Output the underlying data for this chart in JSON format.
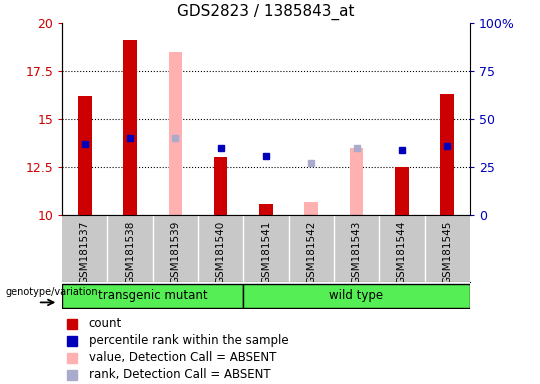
{
  "title": "GDS2823 / 1385843_at",
  "samples": [
    "GSM181537",
    "GSM181538",
    "GSM181539",
    "GSM181540",
    "GSM181541",
    "GSM181542",
    "GSM181543",
    "GSM181544",
    "GSM181545"
  ],
  "ylim": [
    10,
    20
  ],
  "yticks": [
    10,
    12.5,
    15,
    17.5,
    20
  ],
  "ytick_labels": [
    "10",
    "12.5",
    "15",
    "17.5",
    "20"
  ],
  "right_yticks": [
    0,
    25,
    50,
    75,
    100
  ],
  "right_ytick_labels": [
    "0",
    "25",
    "50",
    "75",
    "100%"
  ],
  "count_bars": {
    "GSM181537": 16.2,
    "GSM181538": 19.1,
    "GSM181539": null,
    "GSM181540": 13.0,
    "GSM181541": 10.6,
    "GSM181542": null,
    "GSM181543": null,
    "GSM181544": 12.5,
    "GSM181545": 16.3
  },
  "absent_value_bars": {
    "GSM181539": 18.5,
    "GSM181542": 10.7,
    "GSM181543": 13.5
  },
  "rank_dots": {
    "GSM181537": 13.7,
    "GSM181538": 14.0,
    "GSM181540": 13.5,
    "GSM181541": 13.1,
    "GSM181544": 13.4,
    "GSM181545": 13.6
  },
  "absent_rank_dots": {
    "GSM181539": 14.0,
    "GSM181542": 12.7,
    "GSM181543": 13.5
  },
  "transgenic_samples": [
    "GSM181537",
    "GSM181538",
    "GSM181539",
    "GSM181540"
  ],
  "wildtype_samples": [
    "GSM181541",
    "GSM181542",
    "GSM181543",
    "GSM181544",
    "GSM181545"
  ],
  "bar_color_red": "#cc0000",
  "bar_color_pink": "#ffb0b0",
  "dot_color_blue": "#0000bb",
  "dot_color_lightblue": "#aaaacc",
  "group_label_transgenic": "transgenic mutant",
  "group_label_wildtype": "wild type",
  "group_color": "#55ee55",
  "xticklabel_fontsize": 7.5,
  "title_fontsize": 11,
  "legend_fontsize": 8.5,
  "left_tick_color": "#cc0000",
  "right_tick_color": "#0000bb",
  "bar_width": 0.3,
  "gray_bg": "#c8c8c8"
}
